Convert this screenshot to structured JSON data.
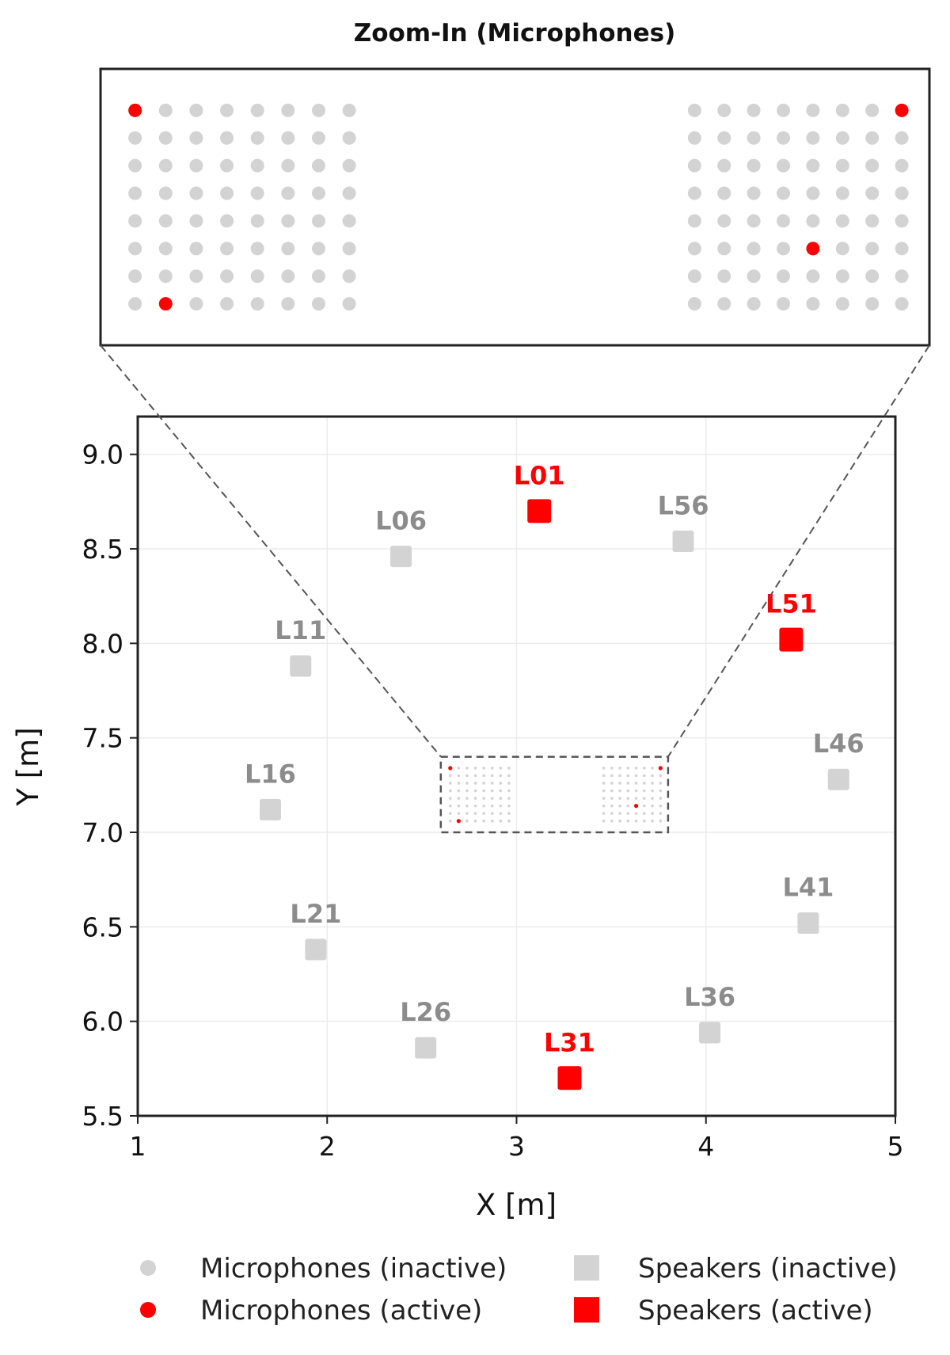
{
  "inset_title": "Zoom-In (Microphones)",
  "colors": {
    "active": "#ff0000",
    "inactive": "#d3d3d3",
    "inactive_label": "#8c8c8c"
  },
  "chart_data": {
    "type": "scatter",
    "xlabel": "X [m]",
    "ylabel": "Y [m]",
    "xlim": [
      1,
      5
    ],
    "ylim": [
      5.5,
      9.2
    ],
    "xticks": [
      1,
      2,
      3,
      4,
      5
    ],
    "yticks": [
      5.5,
      6.0,
      6.5,
      7.0,
      7.5,
      8.0,
      8.5,
      9.0
    ],
    "grid": true,
    "legend_position": "bottom",
    "speakers": [
      {
        "name": "L01",
        "x": 3.12,
        "y": 8.7,
        "active": true
      },
      {
        "name": "L06",
        "x": 2.39,
        "y": 8.46,
        "active": false
      },
      {
        "name": "L56",
        "x": 3.88,
        "y": 8.54,
        "active": false
      },
      {
        "name": "L51",
        "x": 4.45,
        "y": 8.02,
        "active": true
      },
      {
        "name": "L11",
        "x": 1.86,
        "y": 7.88,
        "active": false
      },
      {
        "name": "L46",
        "x": 4.7,
        "y": 7.28,
        "active": false
      },
      {
        "name": "L16",
        "x": 1.7,
        "y": 7.12,
        "active": false
      },
      {
        "name": "L41",
        "x": 4.54,
        "y": 6.52,
        "active": false
      },
      {
        "name": "L21",
        "x": 1.94,
        "y": 6.38,
        "active": false
      },
      {
        "name": "L36",
        "x": 4.02,
        "y": 5.94,
        "active": false
      },
      {
        "name": "L26",
        "x": 2.52,
        "y": 5.86,
        "active": false
      },
      {
        "name": "L31",
        "x": 3.28,
        "y": 5.7,
        "active": true
      }
    ],
    "microphone_arrays": {
      "rows": 8,
      "cols": 8,
      "left_array_x_range": [
        2.65,
        2.96
      ],
      "right_array_x_range": [
        3.46,
        3.76
      ],
      "y_range": [
        7.06,
        7.34
      ],
      "zoom_region": {
        "x": [
          2.6,
          3.8
        ],
        "y": [
          7.0,
          7.4
        ]
      },
      "active": [
        {
          "array": "left",
          "row": 0,
          "col": 0
        },
        {
          "array": "left",
          "row": 7,
          "col": 1
        },
        {
          "array": "right",
          "row": 0,
          "col": 7
        },
        {
          "array": "right",
          "row": 5,
          "col": 4
        }
      ]
    },
    "legend": [
      {
        "label": "Microphones (inactive)",
        "marker": "circle",
        "state": "inactive"
      },
      {
        "label": "Microphones (active)",
        "marker": "circle",
        "state": "active"
      },
      {
        "label": "Speakers (inactive)",
        "marker": "square",
        "state": "inactive"
      },
      {
        "label": "Speakers (active)",
        "marker": "square",
        "state": "active"
      }
    ]
  }
}
